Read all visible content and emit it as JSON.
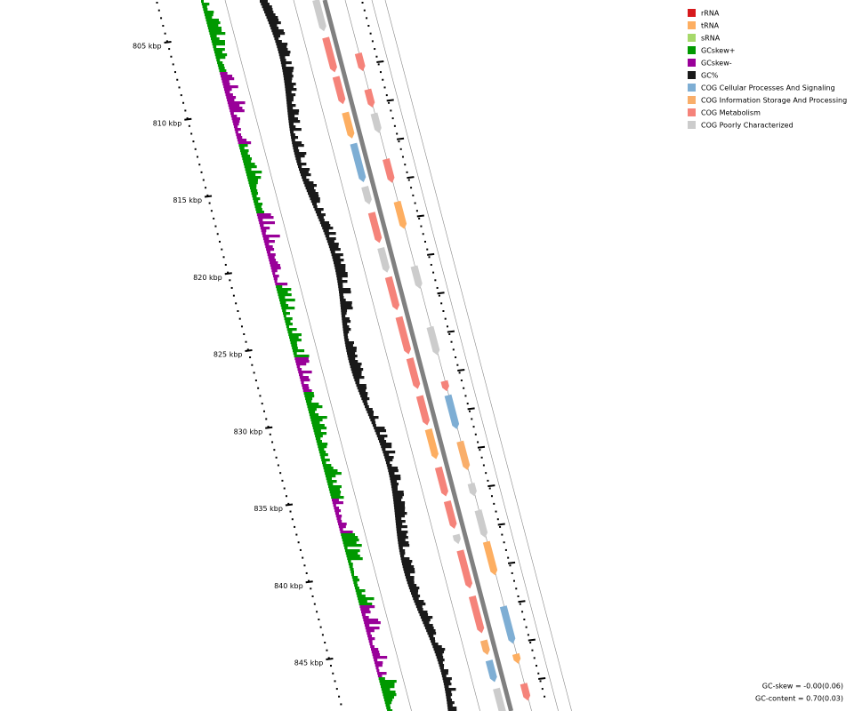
{
  "legend": {
    "items": [
      {
        "label": "rRNA",
        "color": "#d7191c"
      },
      {
        "label": "tRNA",
        "color": "#fdae61"
      },
      {
        "label": "sRNA",
        "color": "#a6d96a"
      },
      {
        "label": "GCskew+",
        "color": "#009900"
      },
      {
        "label": "GCskew-",
        "color": "#990099"
      },
      {
        "label": "GC%",
        "color": "#1a1a1a"
      },
      {
        "label": "COG Cellular Processes And Signaling",
        "color": "#7eaed4"
      },
      {
        "label": "COG Information Storage And Processing",
        "color": "#f9ae6a"
      },
      {
        "label": "COG Metabolism",
        "color": "#f5837a"
      },
      {
        "label": "COG Poorly Characterized",
        "color": "#cccccc"
      }
    ]
  },
  "ruler": {
    "ticks": [
      "805 kbp",
      "810 kbp",
      "815 kbp",
      "820 kbp",
      "825 kbp",
      "830 kbp",
      "835 kbp",
      "840 kbp",
      "845 kbp"
    ]
  },
  "footer": {
    "gc_skew": "GC-skew = -0.00(0.06)",
    "gc_content": "GC-content = 0.70(0.03)"
  }
}
